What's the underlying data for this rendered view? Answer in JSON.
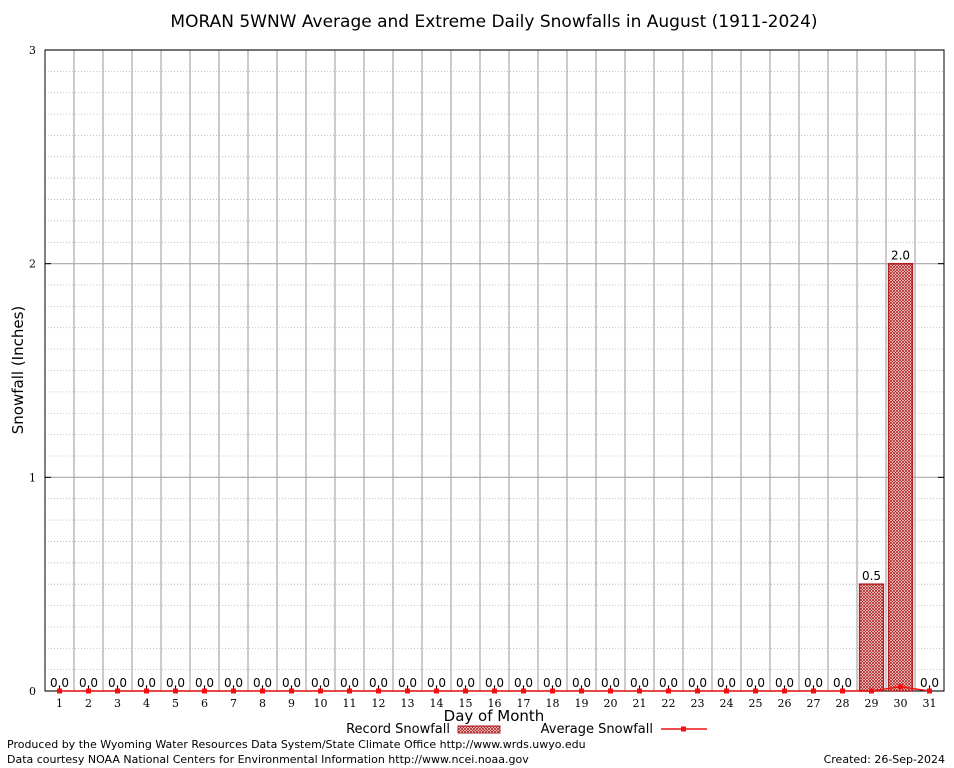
{
  "chart_data": {
    "type": "bar",
    "title": "MORAN 5WNW Average and Extreme Daily Snowfalls in August (1911-2024)",
    "xlabel": "Day of Month",
    "ylabel": "Snowfall (Inches)",
    "ylim": [
      0,
      3
    ],
    "yticks": [
      "0",
      "1",
      "2",
      "3"
    ],
    "grid": true,
    "legend_position": "bottom",
    "categories": [
      "1",
      "2",
      "3",
      "4",
      "5",
      "6",
      "7",
      "8",
      "9",
      "10",
      "11",
      "12",
      "13",
      "14",
      "15",
      "16",
      "17",
      "18",
      "19",
      "20",
      "21",
      "22",
      "23",
      "24",
      "25",
      "26",
      "27",
      "28",
      "29",
      "30",
      "31"
    ],
    "series": [
      {
        "name": "Record Snowfall",
        "kind": "bar",
        "color": "#b22222",
        "values": [
          0,
          0,
          0,
          0,
          0,
          0,
          0,
          0,
          0,
          0,
          0,
          0,
          0,
          0,
          0,
          0,
          0,
          0,
          0,
          0,
          0,
          0,
          0,
          0,
          0,
          0,
          0,
          0,
          0.5,
          2.0,
          0
        ],
        "labels": [
          "0.0",
          "0.0",
          "0.0",
          "0.0",
          "0.0",
          "0.0",
          "0.0",
          "0.0",
          "0.0",
          "0.0",
          "0.0",
          "0.0",
          "0.0",
          "0.0",
          "0.0",
          "0.0",
          "0.0",
          "0.0",
          "0.0",
          "0.0",
          "0.0",
          "0.0",
          "0.0",
          "0.0",
          "0.0",
          "0.0",
          "0.0",
          "0.0",
          "0.5",
          "2.0",
          "0.0"
        ]
      },
      {
        "name": "Average Snowfall",
        "kind": "line",
        "color": "#ee1111",
        "values": [
          0,
          0,
          0,
          0,
          0,
          0,
          0,
          0,
          0,
          0,
          0,
          0,
          0,
          0,
          0,
          0,
          0,
          0,
          0,
          0,
          0,
          0,
          0,
          0,
          0,
          0,
          0,
          0,
          0,
          0.02,
          0
        ]
      }
    ]
  },
  "footer": {
    "produced_by": "Produced by the Wyoming Water Resources Data System/State Climate Office http://www.wrds.uwyo.edu",
    "courtesy": "Data courtesy NOAA National Centers for Environmental Information http://www.ncei.noaa.gov",
    "created": "Created: 26-Sep-2024"
  }
}
